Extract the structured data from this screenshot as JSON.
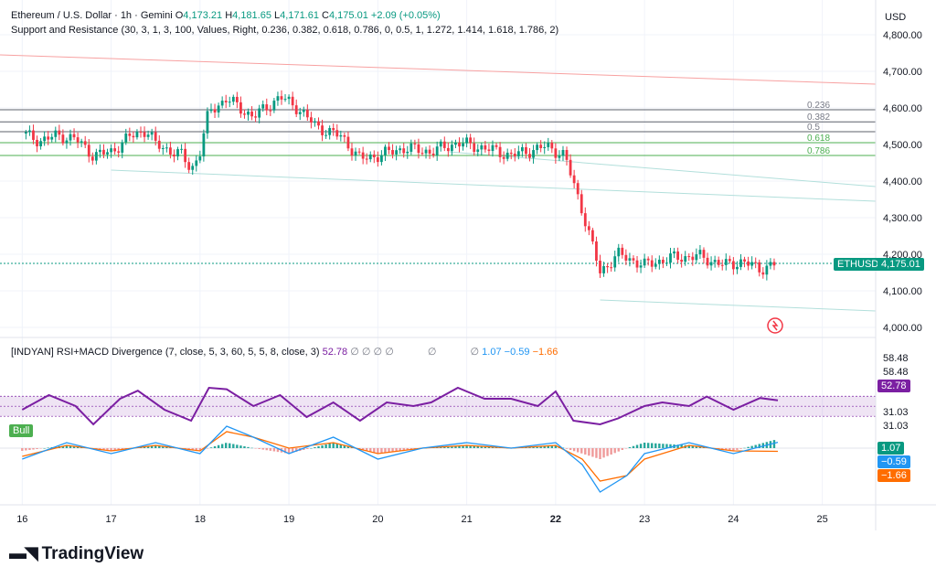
{
  "header": {
    "title": "Ethereum / U.S. Dollar · 1h · Gemini",
    "o_label": "O",
    "o_value": "4,173.21",
    "h_label": "H",
    "h_value": "4,181.65",
    "l_label": "L",
    "l_value": "4,171.61",
    "c_label": "C",
    "c_value": "4,175.01",
    "change": "+2.09 (+0.05%)",
    "indicator_line": "Support and Resistance (30, 3, 1, 3, 100, Values, Right, 0.236, 0.382, 0.618, 0.786, 0, 0.5, 1, 1.272, 1.414, 1.618, 1.786, 2)"
  },
  "currency": "USD",
  "symbol_tag": "ETHUSD",
  "price_tag": "4,175.01",
  "bull_tag": "Bull",
  "indicator": {
    "title": "[INDYAN] RSI+MACD Divergence (7, close, 5, 3, 60, 5, 5, 8, close, 3)",
    "rsi_value": "52.78",
    "placeholders": [
      "∅",
      "∅",
      "∅",
      "∅",
      "∅",
      "∅"
    ],
    "macd_value": "1.07",
    "signal_value": "−0.59",
    "hist_value": "−1.66",
    "axis_labels": [
      "58.48",
      "58.48",
      "31.03",
      "31.03"
    ]
  },
  "fib_labels": [
    "0.236",
    "0.382",
    "0.5",
    "0.618",
    "0.786"
  ],
  "branding": {
    "logo_text": "TradingView"
  },
  "colors": {
    "up": "#089981",
    "down": "#f23645",
    "rsi": "#7b1fa2",
    "macd": "#2196f3",
    "signal": "#ff6d00",
    "support": "#4caf50",
    "resistance": "#f7a1a1"
  },
  "chart_data": [
    {
      "type": "candlestick",
      "title": "Ethereum / U.S. Dollar · 1h · Gemini",
      "y_axis_side": "right",
      "ylim": [
        3950,
        4850
      ],
      "y_ticks": [
        "4,800.00",
        "4,700.00",
        "4,600.00",
        "4,500.00",
        "4,400.00",
        "4,300.00",
        "4,200.00",
        "4,100.00",
        "4,000.00"
      ],
      "x_ticks": [
        "16",
        "17",
        "18",
        "19",
        "20",
        "21",
        "22",
        "23",
        "24",
        "25"
      ],
      "grid": true,
      "close_path": [
        [
          16.0,
          4530
        ],
        [
          16.2,
          4510
        ],
        [
          16.4,
          4525
        ],
        [
          16.6,
          4515
        ],
        [
          16.8,
          4470
        ],
        [
          17.0,
          4480
        ],
        [
          17.2,
          4520
        ],
        [
          17.4,
          4540
        ],
        [
          17.5,
          4500
        ],
        [
          17.8,
          4470
        ],
        [
          17.9,
          4430
        ],
        [
          18.0,
          4480
        ],
        [
          18.1,
          4590
        ],
        [
          18.3,
          4625
        ],
        [
          18.6,
          4575
        ],
        [
          18.9,
          4630
        ],
        [
          19.1,
          4600
        ],
        [
          19.3,
          4550
        ],
        [
          19.6,
          4520
        ],
        [
          19.8,
          4460
        ],
        [
          20.0,
          4470
        ],
        [
          20.3,
          4490
        ],
        [
          20.6,
          4480
        ],
        [
          20.9,
          4505
        ],
        [
          21.2,
          4490
        ],
        [
          21.5,
          4470
        ],
        [
          21.9,
          4495
        ],
        [
          22.1,
          4470
        ],
        [
          22.3,
          4320
        ],
        [
          22.5,
          4150
        ],
        [
          22.7,
          4200
        ],
        [
          23.0,
          4170
        ],
        [
          23.3,
          4190
        ],
        [
          23.6,
          4195
        ],
        [
          23.9,
          4170
        ],
        [
          24.1,
          4180
        ],
        [
          24.3,
          4160
        ],
        [
          24.5,
          4175
        ]
      ],
      "fib_levels": [
        4595,
        4562,
        4535,
        4505,
        4470
      ],
      "support_trendline": [
        [
          17.0,
          4430
        ],
        [
          25.6,
          4345
        ]
      ],
      "lower_trendline": [
        [
          22.5,
          4075
        ],
        [
          25.6,
          4045
        ]
      ],
      "resistance_trendline": [
        [
          15.75,
          4745
        ],
        [
          25.6,
          4665
        ]
      ],
      "mid_trendline": [
        [
          20.8,
          4480
        ],
        [
          25.6,
          4385
        ]
      ],
      "last_price": 4175.01
    },
    {
      "type": "line",
      "title": "[INDYAN] RSI+MACD Divergence",
      "series": [
        {
          "name": "RSI",
          "path": [
            [
              16.0,
              40
            ],
            [
              16.3,
              60
            ],
            [
              16.6,
              45
            ],
            [
              16.8,
              20
            ],
            [
              17.1,
              55
            ],
            [
              17.3,
              66
            ],
            [
              17.6,
              40
            ],
            [
              17.9,
              25
            ],
            [
              18.1,
              70
            ],
            [
              18.3,
              68
            ],
            [
              18.6,
              45
            ],
            [
              18.9,
              60
            ],
            [
              19.2,
              30
            ],
            [
              19.5,
              50
            ],
            [
              19.8,
              25
            ],
            [
              20.1,
              50
            ],
            [
              20.4,
              45
            ],
            [
              20.6,
              50
            ],
            [
              20.9,
              70
            ],
            [
              21.2,
              55
            ],
            [
              21.5,
              55
            ],
            [
              21.8,
              45
            ],
            [
              22.0,
              65
            ],
            [
              22.2,
              25
            ],
            [
              22.5,
              20
            ],
            [
              22.7,
              28
            ],
            [
              23.0,
              45
            ],
            [
              23.2,
              50
            ],
            [
              23.5,
              45
            ],
            [
              23.7,
              58
            ],
            [
              24.0,
              40
            ],
            [
              24.3,
              56
            ],
            [
              24.5,
              52.78
            ]
          ]
        },
        {
          "name": "MACD",
          "path": [
            [
              16.0,
              -2
            ],
            [
              16.5,
              1
            ],
            [
              17.0,
              -1
            ],
            [
              17.5,
              1
            ],
            [
              18.0,
              -1
            ],
            [
              18.3,
              4
            ],
            [
              18.6,
              2
            ],
            [
              19.0,
              -1
            ],
            [
              19.5,
              2
            ],
            [
              20.0,
              -2
            ],
            [
              20.5,
              0
            ],
            [
              21.0,
              1
            ],
            [
              21.5,
              0
            ],
            [
              22.0,
              1
            ],
            [
              22.3,
              -3
            ],
            [
              22.5,
              -8
            ],
            [
              22.8,
              -5
            ],
            [
              23.0,
              -1
            ],
            [
              23.5,
              1
            ],
            [
              24.0,
              -1
            ],
            [
              24.5,
              1.07
            ]
          ]
        },
        {
          "name": "Signal",
          "path": [
            [
              16.0,
              -1.5
            ],
            [
              16.5,
              0.5
            ],
            [
              17.0,
              -0.5
            ],
            [
              17.5,
              0.5
            ],
            [
              18.0,
              -0.5
            ],
            [
              18.3,
              3
            ],
            [
              18.6,
              2
            ],
            [
              19.0,
              0
            ],
            [
              19.5,
              1
            ],
            [
              20.0,
              -1
            ],
            [
              20.5,
              0
            ],
            [
              21.0,
              0.5
            ],
            [
              21.5,
              0
            ],
            [
              22.0,
              0.5
            ],
            [
              22.3,
              -2
            ],
            [
              22.5,
              -6
            ],
            [
              22.8,
              -5
            ],
            [
              23.0,
              -2
            ],
            [
              23.5,
              0.5
            ],
            [
              24.0,
              -0.5
            ],
            [
              24.5,
              -0.59
            ]
          ]
        }
      ],
      "rsi_band": [
        31.03,
        58.48
      ],
      "rsi_ylim": [
        0,
        100
      ],
      "macd_ylim": [
        -10,
        10
      ]
    }
  ]
}
